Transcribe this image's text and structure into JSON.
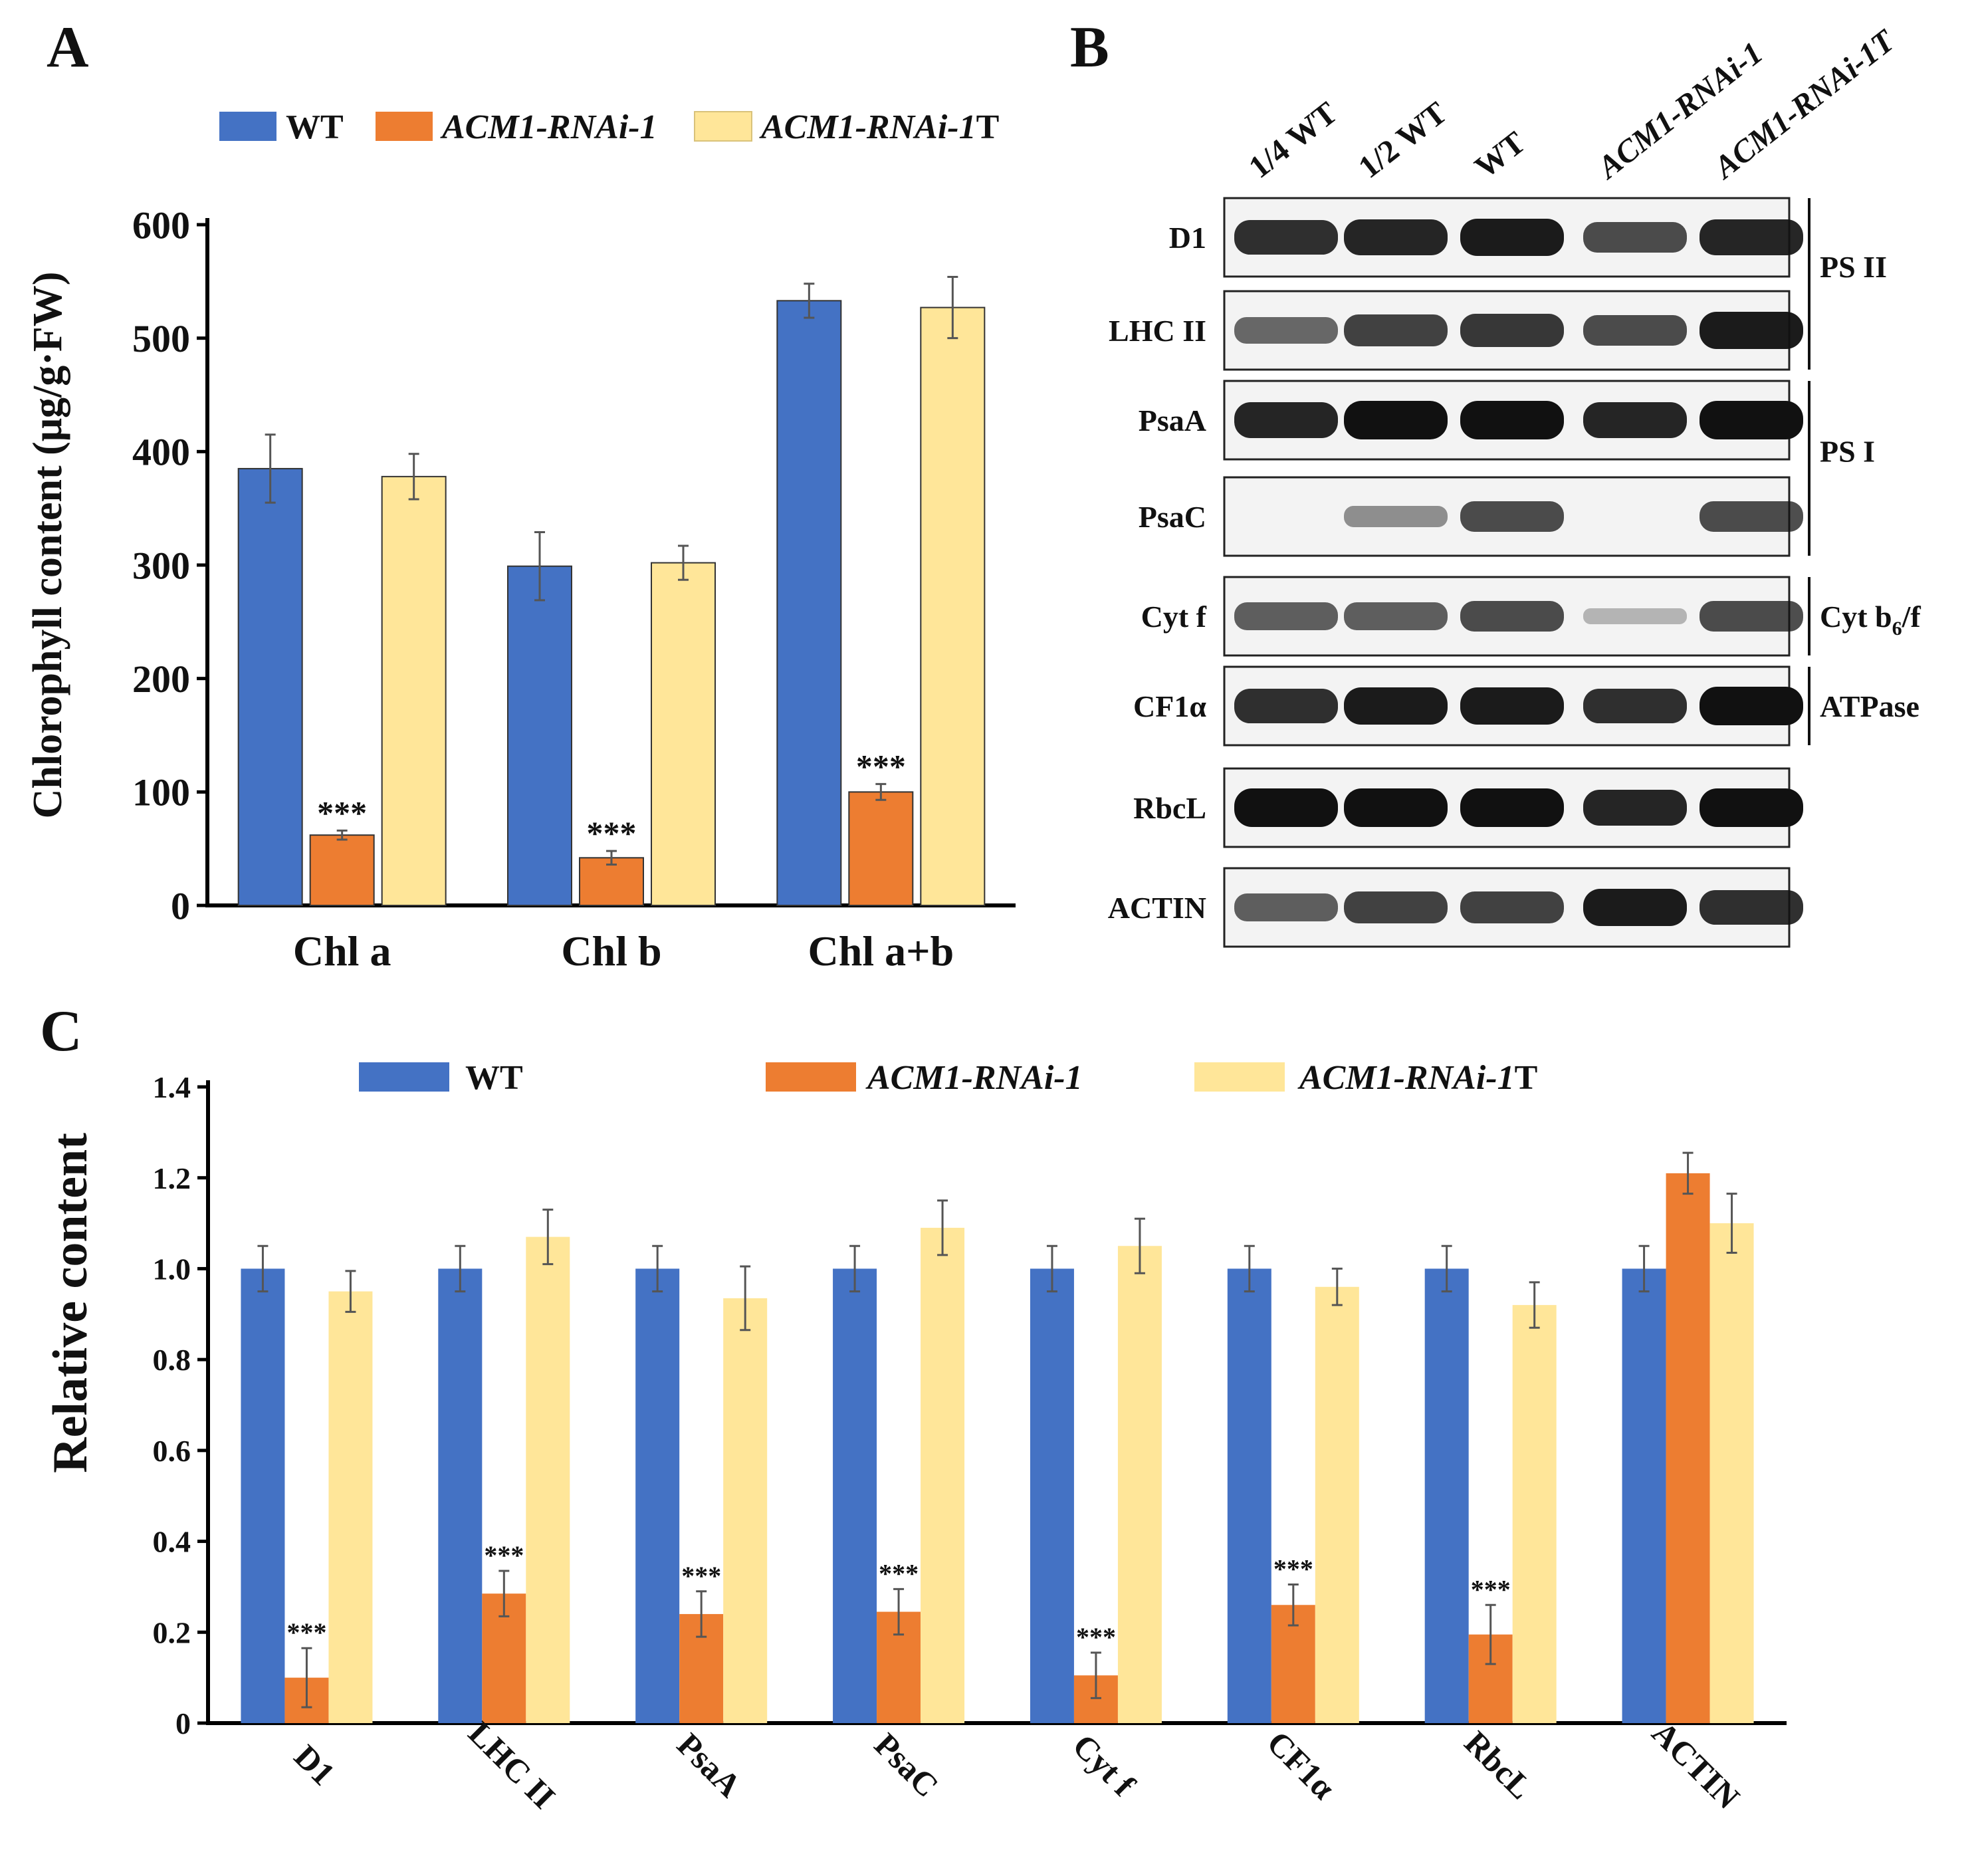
{
  "panels": {
    "a": "A",
    "b": "B",
    "c": "C"
  },
  "legend": {
    "wt": "WT",
    "rnai": "ACM1-RNAi-1",
    "rnai_prefix": "ACM1-RNAi-1",
    "rnai_t_suffix": "T"
  },
  "colors": {
    "wt": "#4472C4",
    "rnai": "#ED7D31",
    "rnai_t": "#FFE699"
  },
  "chart_data": [
    {
      "type": "bar",
      "panel": "A",
      "ylabel": "Chlorophyll content (μg/g·FW)",
      "ylim": [
        0,
        600
      ],
      "yticks": [
        "0",
        "100",
        "200",
        "300",
        "400",
        "500",
        "600"
      ],
      "categories": [
        "Chl a",
        "Chl b",
        "Chl a+b"
      ],
      "series": [
        {
          "name": "WT",
          "values": [
            385,
            299,
            533
          ],
          "errors": [
            30,
            30,
            15
          ]
        },
        {
          "name": "ACM1-RNAi-1",
          "values": [
            62,
            42,
            100
          ],
          "errors": [
            4,
            6,
            7
          ]
        },
        {
          "name": "ACM1-RNAi-1T",
          "values": [
            378,
            302,
            527
          ],
          "errors": [
            20,
            15,
            27
          ]
        }
      ],
      "significance": [
        "***",
        "***",
        "***"
      ]
    },
    {
      "type": "bar",
      "panel": "C",
      "ylabel": "Relative content",
      "ylim": [
        0,
        1.4
      ],
      "yticks": [
        "0",
        "0.2",
        "0.4",
        "0.6",
        "0.8",
        "1.0",
        "1.2",
        "1.4"
      ],
      "categories": [
        "D1",
        "LHC II",
        "PsaA",
        "PsaC",
        "Cyt f",
        "CF1α",
        "RbcL",
        "ACTIN"
      ],
      "series": [
        {
          "name": "WT",
          "values": [
            1.0,
            1.0,
            1.0,
            1.0,
            1.0,
            1.0,
            1.0,
            1.0
          ],
          "errors": [
            0.05,
            0.05,
            0.05,
            0.05,
            0.05,
            0.05,
            0.05,
            0.05
          ]
        },
        {
          "name": "ACM1-RNAi-1",
          "values": [
            0.1,
            0.285,
            0.24,
            0.245,
            0.105,
            0.26,
            0.195,
            1.21
          ],
          "errors": [
            0.065,
            0.05,
            0.05,
            0.05,
            0.05,
            0.045,
            0.065,
            0.045
          ]
        },
        {
          "name": "ACM1-RNAi-1T",
          "values": [
            0.95,
            1.07,
            0.935,
            1.09,
            1.05,
            0.96,
            0.92,
            1.1
          ],
          "errors": [
            0.045,
            0.06,
            0.07,
            0.06,
            0.06,
            0.04,
            0.05,
            0.065
          ]
        }
      ],
      "significance": [
        "***",
        "***",
        "***",
        "***",
        "***",
        "***",
        "***",
        ""
      ]
    }
  ],
  "western_blot": {
    "lanes": [
      "1/4 WT",
      "1/2 WT",
      "WT",
      "ACM1-RNAi-1",
      "ACM1-RNAi-1T"
    ],
    "rows": [
      {
        "label": "D1",
        "intensities": [
          0.85,
          0.9,
          0.95,
          0.7,
          0.9
        ]
      },
      {
        "label": "LHC II",
        "intensities": [
          0.55,
          0.75,
          0.8,
          0.7,
          0.95
        ]
      },
      {
        "label": "PsaA",
        "intensities": [
          0.9,
          1.0,
          1.0,
          0.9,
          1.0
        ]
      },
      {
        "label": "PsaC",
        "intensities": [
          0.05,
          0.35,
          0.7,
          0.05,
          0.7
        ]
      },
      {
        "label": "Cyt f",
        "intensities": [
          0.6,
          0.6,
          0.7,
          0.15,
          0.7
        ]
      },
      {
        "label": "CF1α",
        "intensities": [
          0.85,
          0.95,
          0.95,
          0.85,
          1.0
        ]
      },
      {
        "label": "RbcL",
        "intensities": [
          1.0,
          1.0,
          1.0,
          0.9,
          1.0
        ]
      },
      {
        "label": "ACTIN",
        "intensities": [
          0.6,
          0.75,
          0.75,
          0.95,
          0.85
        ]
      }
    ],
    "groups": [
      {
        "label": "PS II",
        "rows": [
          0,
          1
        ]
      },
      {
        "label": "PS I",
        "rows": [
          2,
          3
        ]
      },
      {
        "label": "Cyt b6/f",
        "prefix": "Cyt b",
        "sub": "6",
        "suffix": "/f",
        "rows": [
          4,
          4
        ]
      },
      {
        "label": "ATPase",
        "rows": [
          5,
          5
        ]
      }
    ]
  }
}
